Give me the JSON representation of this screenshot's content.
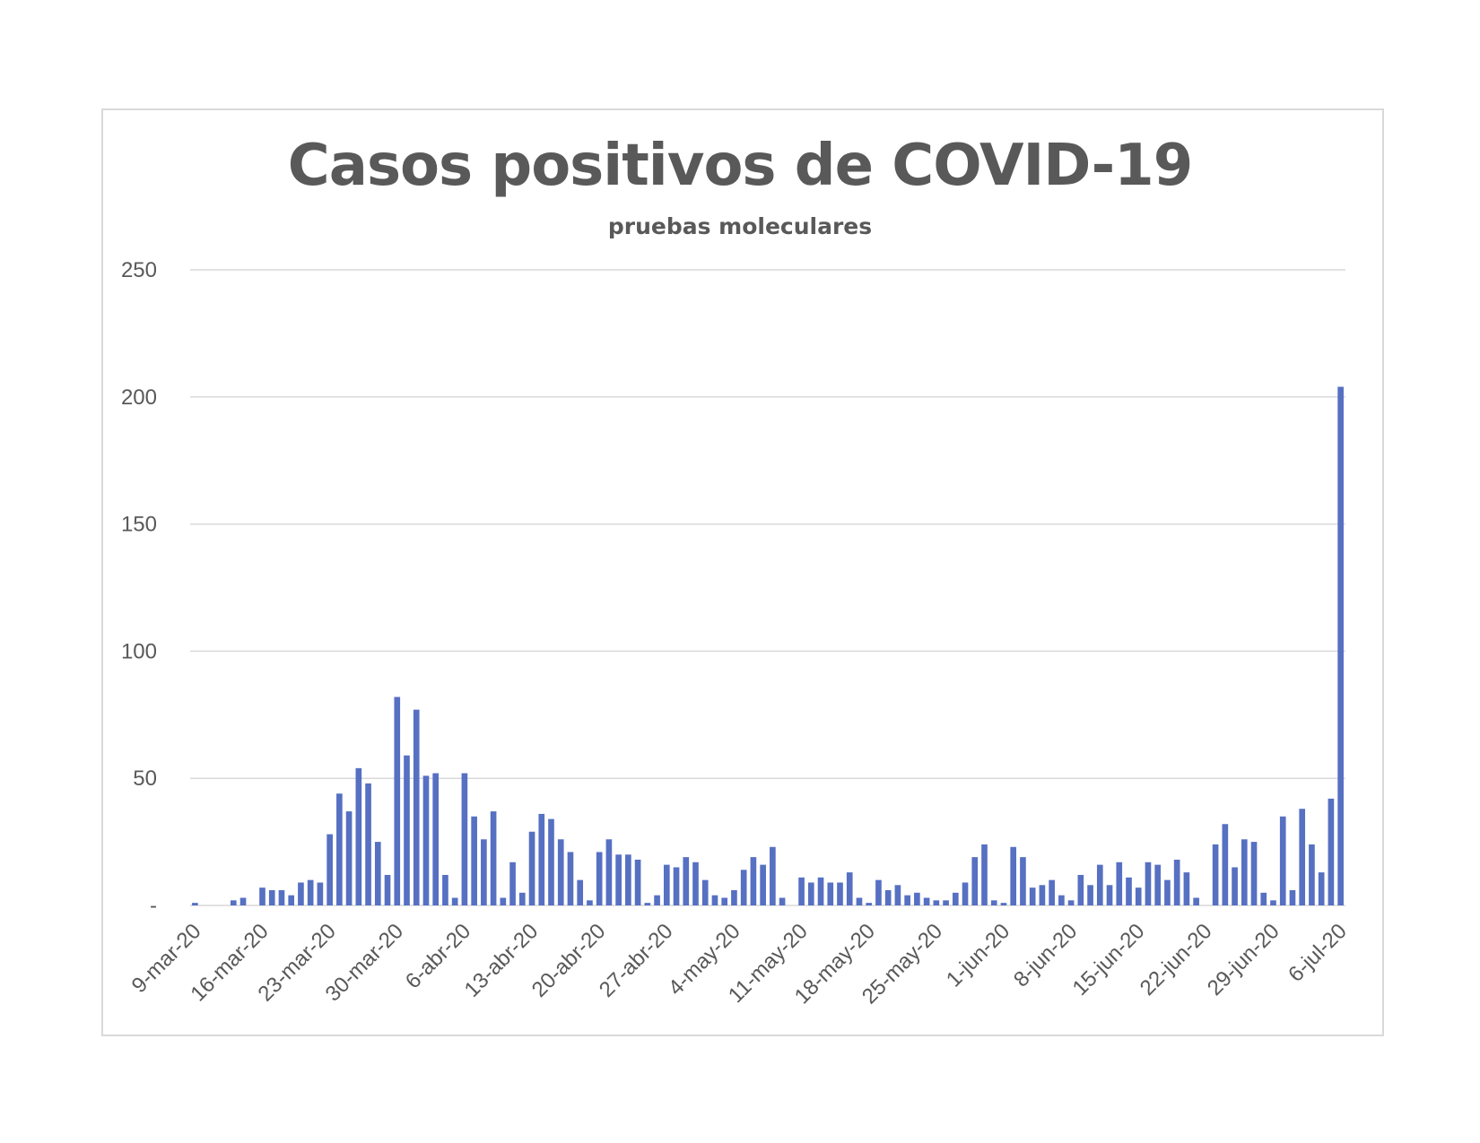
{
  "chart_data": {
    "type": "bar",
    "title": "Casos positivos de COVID-19",
    "subtitle": "pruebas moleculares",
    "xlabel": "",
    "ylabel": "",
    "ylim": [
      0,
      250
    ],
    "y_ticks": [
      "-",
      "50",
      "100",
      "150",
      "200",
      "250"
    ],
    "x_tick_labels": [
      "9-mar-20",
      "16-mar-20",
      "23-mar-20",
      "30-mar-20",
      "6-abr-20",
      "13-abr-20",
      "20-abr-20",
      "27-abr-20",
      "4-may-20",
      "11-may-20",
      "18-may-20",
      "25-may-20",
      "1-jun-20",
      "8-jun-20",
      "15-jun-20",
      "22-jun-20",
      "29-jun-20",
      "6-jul-20"
    ],
    "grid": true,
    "legend": "none",
    "bar_color": "#5670c2",
    "series": [
      {
        "values": [
          1,
          0,
          0,
          0,
          2,
          3,
          0,
          7,
          6,
          6,
          4,
          9,
          10,
          9,
          28,
          44,
          37,
          54,
          48,
          25,
          12,
          82,
          59,
          77,
          51,
          52,
          12,
          3,
          52,
          35,
          26,
          37,
          3,
          17,
          5,
          29,
          36,
          34,
          26,
          21,
          10,
          2,
          21,
          26,
          20,
          20,
          18,
          1,
          4,
          16,
          15,
          19,
          17,
          10,
          4,
          3,
          6,
          14,
          19,
          16,
          23,
          3,
          0,
          11,
          9,
          11,
          9,
          9,
          13,
          3,
          1,
          10,
          6,
          8,
          4,
          5,
          3,
          2,
          2,
          5,
          9,
          19,
          24,
          2,
          1,
          23,
          19,
          7,
          8,
          10,
          4,
          2,
          12,
          8,
          16,
          8,
          17,
          11,
          7,
          17,
          16,
          10,
          18,
          13,
          3,
          0,
          24,
          32,
          15,
          26,
          25,
          5,
          2,
          35,
          6,
          38,
          24,
          13,
          42,
          204
        ]
      }
    ]
  }
}
